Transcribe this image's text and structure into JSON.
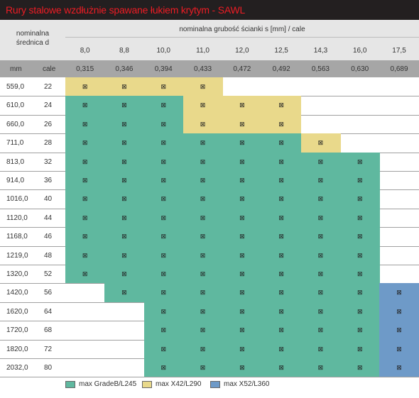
{
  "title": "Rury stalowe wzdłużnie spawane łukiem krytym - SAWL",
  "header": {
    "diameter_label_line1": "nominalna",
    "diameter_label_line2": "średnica d",
    "thickness_label": "nominalna grubość ścianki s [mm] / cale",
    "unit_mm": "mm",
    "unit_inch": "cale"
  },
  "thickness_mm": [
    "8,0",
    "8,8",
    "10,0",
    "11,0",
    "12,0",
    "12,5",
    "14,3",
    "16,0",
    "17,5"
  ],
  "thickness_inch": [
    "0,315",
    "0,346",
    "0,394",
    "0,433",
    "0,472",
    "0,492",
    "0,563",
    "0,630",
    "0,689"
  ],
  "colors": {
    "green": "#5fb89f",
    "yellow": "#e9d98b",
    "blue": "#6e9ac8"
  },
  "mark_symbol": "⊠",
  "rows": [
    {
      "mm": "559,0",
      "inch": "22",
      "cells": [
        "Y",
        "Y",
        "Y",
        "Y",
        "",
        "",
        "",
        "",
        ""
      ]
    },
    {
      "mm": "610,0",
      "inch": "24",
      "cells": [
        "G",
        "G",
        "G",
        "Y",
        "Y",
        "Y",
        "",
        "",
        ""
      ]
    },
    {
      "mm": "660,0",
      "inch": "26",
      "cells": [
        "G",
        "G",
        "G",
        "Y",
        "Y",
        "Y",
        "",
        "",
        ""
      ]
    },
    {
      "mm": "711,0",
      "inch": "28",
      "cells": [
        "G",
        "G",
        "G",
        "G",
        "G",
        "G",
        "Y",
        "",
        ""
      ]
    },
    {
      "mm": "813,0",
      "inch": "32",
      "cells": [
        "G",
        "G",
        "G",
        "G",
        "G",
        "G",
        "G",
        "G",
        ""
      ]
    },
    {
      "mm": "914,0",
      "inch": "36",
      "cells": [
        "G",
        "G",
        "G",
        "G",
        "G",
        "G",
        "G",
        "G",
        ""
      ]
    },
    {
      "mm": "1016,0",
      "inch": "40",
      "cells": [
        "G",
        "G",
        "G",
        "G",
        "G",
        "G",
        "G",
        "G",
        ""
      ]
    },
    {
      "mm": "1120,0",
      "inch": "44",
      "cells": [
        "G",
        "G",
        "G",
        "G",
        "G",
        "G",
        "G",
        "G",
        ""
      ]
    },
    {
      "mm": "1168,0",
      "inch": "46",
      "cells": [
        "G",
        "G",
        "G",
        "G",
        "G",
        "G",
        "G",
        "G",
        ""
      ]
    },
    {
      "mm": "1219,0",
      "inch": "48",
      "cells": [
        "G",
        "G",
        "G",
        "G",
        "G",
        "G",
        "G",
        "G",
        ""
      ]
    },
    {
      "mm": "1320,0",
      "inch": "52",
      "cells": [
        "G",
        "G",
        "G",
        "G",
        "G",
        "G",
        "G",
        "G",
        ""
      ]
    },
    {
      "mm": "1420,0",
      "inch": "56",
      "cells": [
        "",
        "G",
        "G",
        "G",
        "G",
        "G",
        "G",
        "G",
        "B"
      ]
    },
    {
      "mm": "1620,0",
      "inch": "64",
      "cells": [
        "",
        "",
        "G",
        "G",
        "G",
        "G",
        "G",
        "G",
        "B"
      ]
    },
    {
      "mm": "1720,0",
      "inch": "68",
      "cells": [
        "",
        "",
        "G",
        "G",
        "G",
        "G",
        "G",
        "G",
        "B"
      ]
    },
    {
      "mm": "1820,0",
      "inch": "72",
      "cells": [
        "",
        "",
        "G",
        "G",
        "G",
        "G",
        "G",
        "G",
        "B"
      ]
    },
    {
      "mm": "2032,0",
      "inch": "80",
      "cells": [
        "",
        "",
        "G",
        "G",
        "G",
        "G",
        "G",
        "G",
        "B"
      ]
    }
  ],
  "legend": [
    {
      "key": "G",
      "label": "max GradeB/L245"
    },
    {
      "key": "Y",
      "label": "max X42/L290"
    },
    {
      "key": "B",
      "label": "max X52/L360"
    }
  ]
}
